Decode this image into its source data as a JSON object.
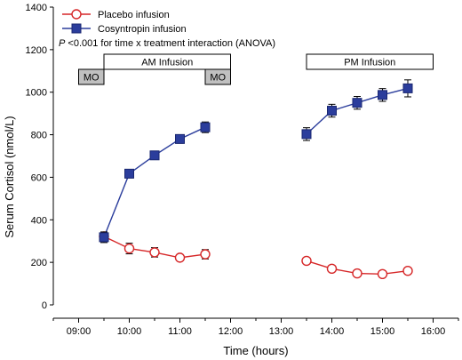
{
  "chart_data": {
    "type": "line",
    "xlabel": "Time (hours)",
    "ylabel": "Serum Cortisol (nmol/L)",
    "ylim": [
      0,
      1400
    ],
    "yticks": [
      0,
      200,
      400,
      600,
      800,
      1000,
      1200,
      1400
    ],
    "xlim": [
      "08:30",
      "16:30"
    ],
    "xtick_labels": [
      "09:00",
      "10:00",
      "11:00",
      "12:00",
      "13:00",
      "14:00",
      "15:00",
      "16:00"
    ],
    "grid": false,
    "legend_position": "top-left",
    "annotation": {
      "p_symbol": "P",
      "text": " <0.001 for time x treatment interaction (ANOVA)"
    },
    "phases": [
      {
        "label": "AM Infusion",
        "start": "09:30",
        "end": "12:00"
      },
      {
        "label": "PM Infusion",
        "start": "13:30",
        "end": "16:00"
      }
    ],
    "mo_boxes": [
      {
        "label": "MO",
        "start": "09:00",
        "end": "09:30"
      },
      {
        "label": "MO",
        "start": "11:30",
        "end": "12:00"
      }
    ],
    "series": [
      {
        "name": "Placebo infusion",
        "color": "#d62728",
        "marker": "open-circle",
        "segments": [
          [
            {
              "x": "09:30",
              "y": 322,
              "err": 15
            },
            {
              "x": "10:00",
              "y": 265,
              "err": 25
            },
            {
              "x": "10:30",
              "y": 247,
              "err": 22
            },
            {
              "x": "11:00",
              "y": 222,
              "err": 15
            },
            {
              "x": "11:30",
              "y": 238,
              "err": 22
            }
          ],
          [
            {
              "x": "13:30",
              "y": 207,
              "err": 12
            },
            {
              "x": "14:00",
              "y": 170,
              "err": 12
            },
            {
              "x": "14:30",
              "y": 148,
              "err": 12
            },
            {
              "x": "15:00",
              "y": 145,
              "err": 12
            },
            {
              "x": "15:30",
              "y": 160,
              "err": 15
            }
          ]
        ]
      },
      {
        "name": "Cosyntropin infusion",
        "color": "#2b3d9c",
        "marker": "filled-square",
        "segments": [
          [
            {
              "x": "09:30",
              "y": 318,
              "err": 25
            },
            {
              "x": "10:00",
              "y": 617,
              "err": 20
            },
            {
              "x": "10:30",
              "y": 703,
              "err": 18
            },
            {
              "x": "11:00",
              "y": 780,
              "err": 20
            },
            {
              "x": "11:30",
              "y": 835,
              "err": 25
            }
          ],
          [
            {
              "x": "13:30",
              "y": 803,
              "err": 30
            },
            {
              "x": "14:00",
              "y": 913,
              "err": 30
            },
            {
              "x": "14:30",
              "y": 950,
              "err": 30
            },
            {
              "x": "15:00",
              "y": 987,
              "err": 30
            },
            {
              "x": "15:30",
              "y": 1018,
              "err": 40
            }
          ]
        ]
      }
    ]
  }
}
